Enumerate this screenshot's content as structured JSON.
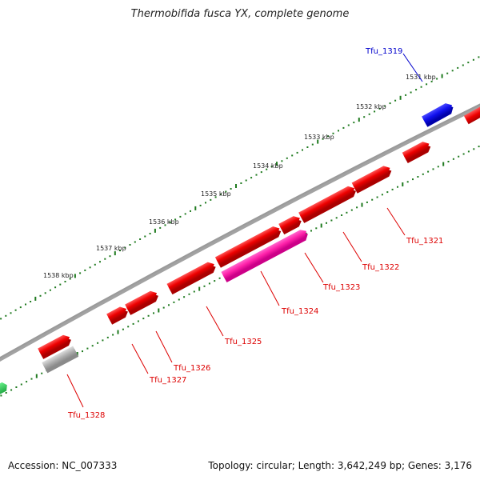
{
  "title": "Thermobifida fusca YX, complete genome",
  "footer": {
    "accession": "Accession: NC_007333",
    "summary": "Topology: circular; Length: 3,642,249 bp; Genes: 3,176"
  },
  "colors": {
    "backbone": "#7a7a7a",
    "tick": "#1f7a1f",
    "gene_forward": "#ee0000",
    "gene_highlight": "#ff22aa",
    "gene_selected": "#1010ee",
    "gene_other": "#b0b0b0",
    "gene_green": "#22cc44",
    "label_red": "#dd0000",
    "label_blue": "#0000cc"
  },
  "kbp_labels": [
    "1531 kbp",
    "1532 kbp",
    "1533 kbp",
    "1534 kbp",
    "1535 kbp",
    "1536 kbp",
    "1537 kbp",
    "1538 kbp"
  ],
  "gene_labels": [
    {
      "id": "tfu1319",
      "text": "Tfu_1319",
      "color": "blue"
    },
    {
      "id": "tfu1321",
      "text": "Tfu_1321",
      "color": "red"
    },
    {
      "id": "tfu1322",
      "text": "Tfu_1322",
      "color": "red"
    },
    {
      "id": "tfu1323",
      "text": "Tfu_1323",
      "color": "red"
    },
    {
      "id": "tfu1324",
      "text": "Tfu_1324",
      "color": "red"
    },
    {
      "id": "tfu1325",
      "text": "Tfu_1325",
      "color": "red"
    },
    {
      "id": "tfu1326",
      "text": "Tfu_1326",
      "color": "red"
    },
    {
      "id": "tfu1327",
      "text": "Tfu_1327",
      "color": "red"
    },
    {
      "id": "tfu1328",
      "text": "Tfu_1328",
      "color": "red"
    }
  ]
}
